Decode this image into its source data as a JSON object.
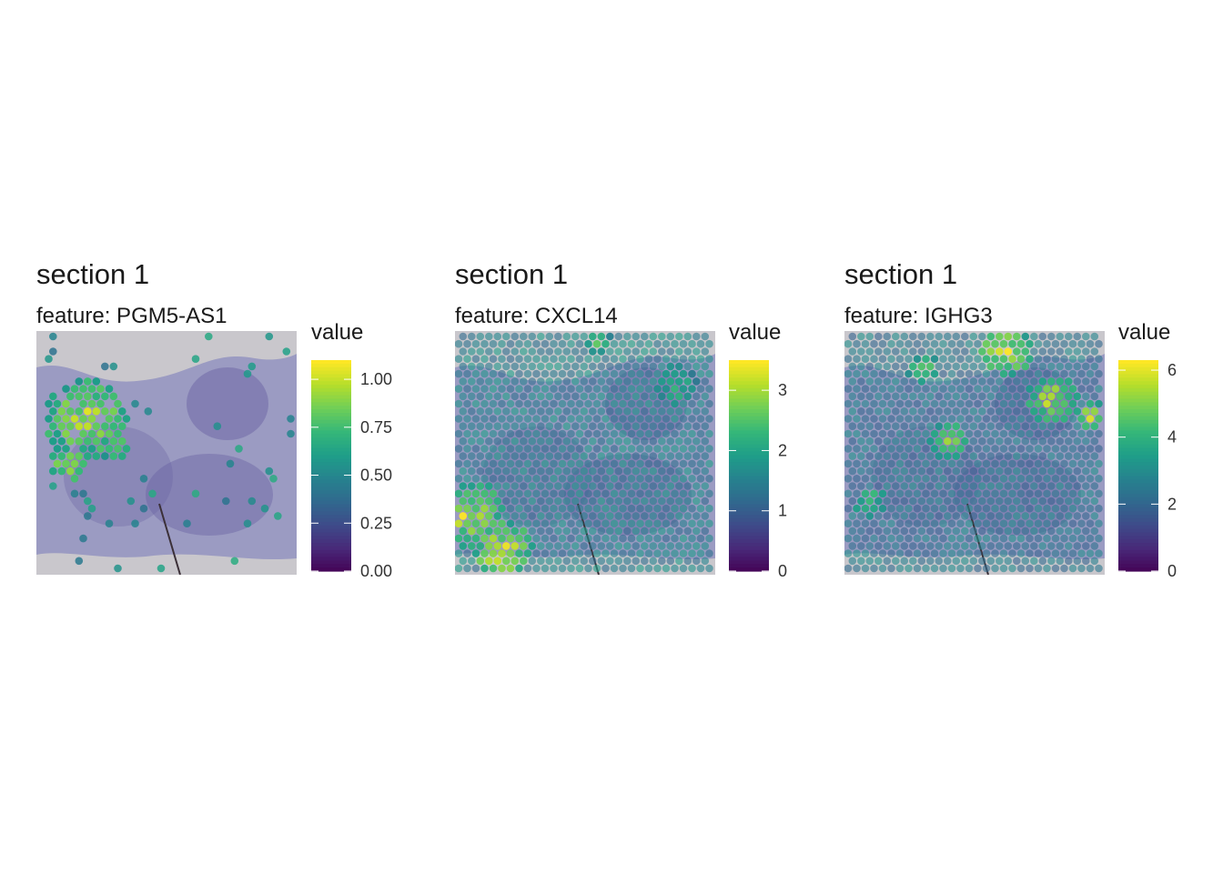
{
  "colors": {
    "viridis": [
      "#440154",
      "#482878",
      "#3e4a89",
      "#31688e",
      "#26828e",
      "#1f9e89",
      "#35b779",
      "#6ece58",
      "#b5de2b",
      "#fde725"
    ],
    "tissue_bg": "#9b9bc2",
    "tissue_dark": "#6b64a3",
    "slide_bg": "#c9c7cc",
    "scratch": "#3b3038"
  },
  "chart_data": [
    {
      "type": "scatter",
      "title": "section 1",
      "subtitle": "feature:  PGM5-AS1",
      "legend_title": "value",
      "color_range": [
        0,
        1.1
      ],
      "legend_ticks": [
        "0.00",
        "0.25",
        "0.50",
        "0.75",
        "1.00"
      ],
      "legend_tick_values": [
        0,
        0.25,
        0.5,
        0.75,
        1.0
      ],
      "spot_mode": "sparse",
      "hotspots": [
        {
          "cx": 0.19,
          "cy": 0.36,
          "r": 0.16,
          "value": 1.05
        },
        {
          "cx": 0.12,
          "cy": 0.55,
          "r": 0.08,
          "value": 1.0
        },
        {
          "cx": 0.3,
          "cy": 0.48,
          "r": 0.06,
          "value": 0.95
        }
      ],
      "background_value": 0.55
    },
    {
      "type": "scatter",
      "title": "section 1",
      "subtitle": "feature:  CXCL14",
      "legend_title": "value",
      "color_range": [
        0,
        3.5
      ],
      "legend_ticks": [
        "0",
        "1",
        "2",
        "3"
      ],
      "legend_tick_values": [
        0,
        1,
        2,
        3
      ],
      "spot_mode": "dense",
      "hotspots": [
        {
          "cx": 0.05,
          "cy": 0.75,
          "r": 0.14,
          "value": 3.4
        },
        {
          "cx": 0.18,
          "cy": 0.9,
          "r": 0.12,
          "value": 3.5
        },
        {
          "cx": 0.55,
          "cy": 0.04,
          "r": 0.05,
          "value": 2.8
        },
        {
          "cx": 0.85,
          "cy": 0.22,
          "r": 0.08,
          "value": 2.6
        }
      ],
      "background_value": 1.6
    },
    {
      "type": "scatter",
      "title": "section 1",
      "subtitle": "feature:  IGHG3",
      "legend_title": "value",
      "color_range": [
        0,
        6.3
      ],
      "legend_ticks": [
        "0",
        "2",
        "4",
        "6"
      ],
      "legend_tick_values": [
        0,
        2,
        4,
        6
      ],
      "spot_mode": "dense",
      "hotspots": [
        {
          "cx": 0.62,
          "cy": 0.08,
          "r": 0.1,
          "value": 6.2
        },
        {
          "cx": 0.8,
          "cy": 0.28,
          "r": 0.1,
          "value": 6.0
        },
        {
          "cx": 0.4,
          "cy": 0.45,
          "r": 0.08,
          "value": 5.5
        },
        {
          "cx": 0.95,
          "cy": 0.35,
          "r": 0.06,
          "value": 6.0
        },
        {
          "cx": 0.1,
          "cy": 0.7,
          "r": 0.06,
          "value": 5.0
        },
        {
          "cx": 0.3,
          "cy": 0.15,
          "r": 0.06,
          "value": 5.0
        }
      ],
      "background_value": 2.6
    }
  ]
}
